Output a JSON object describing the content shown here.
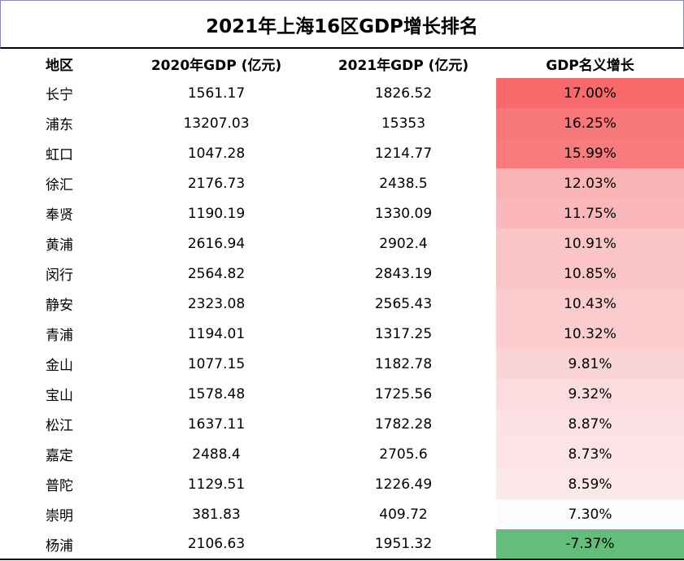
{
  "title": "2021年上海16区GDP增长排名",
  "headers": [
    "地区",
    "2020年GDP (亿元)",
    "2021年GDP (亿元)",
    "GDP名义增长"
  ],
  "rows": [
    {
      "district": "长宁",
      "gdp2020": "1561.17",
      "gdp2021": "1826.52",
      "growth": "17.00%",
      "color": "#f8696b"
    },
    {
      "district": "浦东",
      "gdp2020": "13207.03",
      "gdp2021": "15353",
      "growth": "16.25%",
      "color": "#f8777a"
    },
    {
      "district": "虹口",
      "gdp2020": "1047.28",
      "gdp2021": "1214.77",
      "growth": "15.99%",
      "color": "#f87b7e"
    },
    {
      "district": "徐汇",
      "gdp2020": "2176.73",
      "gdp2021": "2438.5",
      "growth": "12.03%",
      "color": "#fab4b6"
    },
    {
      "district": "奉贤",
      "gdp2020": "1190.19",
      "gdp2021": "1330.09",
      "growth": "11.75%",
      "color": "#fbb8ba"
    },
    {
      "district": "黄浦",
      "gdp2020": "2616.94",
      "gdp2021": "2902.4",
      "growth": "10.91%",
      "color": "#fbc4c6"
    },
    {
      "district": "闵行",
      "gdp2020": "2564.82",
      "gdp2021": "2843.19",
      "growth": "10.85%",
      "color": "#fbc5c7"
    },
    {
      "district": "静安",
      "gdp2020": "2323.08",
      "gdp2021": "2565.43",
      "growth": "10.43%",
      "color": "#fbcbcd"
    },
    {
      "district": "青浦",
      "gdp2020": "1194.01",
      "gdp2021": "1317.25",
      "growth": "10.32%",
      "color": "#fbcdcf"
    },
    {
      "district": "金山",
      "gdp2020": "1077.15",
      "gdp2021": "1182.78",
      "growth": "9.81%",
      "color": "#fbd4d6"
    },
    {
      "district": "宝山",
      "gdp2020": "1578.48",
      "gdp2021": "1725.56",
      "growth": "9.32%",
      "color": "#fcdcde"
    },
    {
      "district": "松江",
      "gdp2020": "1637.11",
      "gdp2021": "1782.28",
      "growth": "8.87%",
      "color": "#fce2e4"
    },
    {
      "district": "嘉定",
      "gdp2020": "2488.4",
      "gdp2021": "2705.6",
      "growth": "8.73%",
      "color": "#fce4e6"
    },
    {
      "district": "普陀",
      "gdp2020": "1129.51",
      "gdp2021": "1226.49",
      "growth": "8.59%",
      "color": "#fce7e9"
    },
    {
      "district": "崇明",
      "gdp2020": "381.83",
      "gdp2021": "409.72",
      "growth": "7.30%",
      "color": "#fcfbfe"
    },
    {
      "district": "杨浦",
      "gdp2020": "2106.63",
      "gdp2021": "1951.32",
      "growth": "-7.37%",
      "color": "#63be7b"
    }
  ]
}
